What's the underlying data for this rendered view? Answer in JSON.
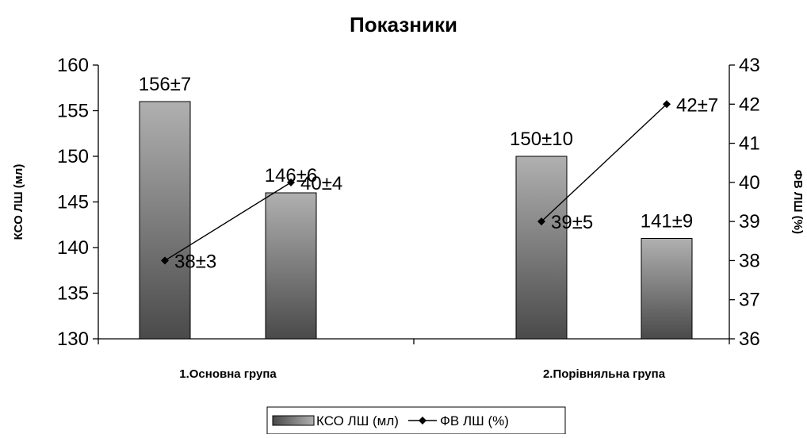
{
  "chart_data": {
    "type": "bar",
    "title": "Показники",
    "groups": [
      "1.Основна група",
      "2.Порівняльна група"
    ],
    "series": [
      {
        "name": "КСО ЛШ (мл)",
        "kind": "bar",
        "axis": "left",
        "values": [
          156,
          146,
          150,
          141
        ],
        "labels": [
          "156±7",
          "146±6",
          "150±10",
          "141±9"
        ],
        "gradient": [
          "#4a4a4a",
          "#b0b0b0"
        ]
      },
      {
        "name": "ФВ ЛШ (%)",
        "kind": "line",
        "axis": "right",
        "values": [
          38,
          40,
          39,
          42
        ],
        "labels": [
          "38±3",
          "40±4",
          "39±5",
          "42±7"
        ],
        "connect": [
          [
            0,
            1
          ],
          [
            2,
            3
          ]
        ],
        "color": "#000000"
      }
    ],
    "ylabel": "КСО ЛШ (мл)",
    "y2label": "ФВ ЛШ (%)",
    "ylim": [
      130,
      160
    ],
    "yticks": [
      130,
      135,
      140,
      145,
      150,
      155,
      160
    ],
    "y2lim": [
      36,
      43
    ],
    "y2ticks": [
      36,
      37,
      38,
      39,
      40,
      41,
      42,
      43
    ],
    "grid": false,
    "legend_position": "bottom"
  }
}
